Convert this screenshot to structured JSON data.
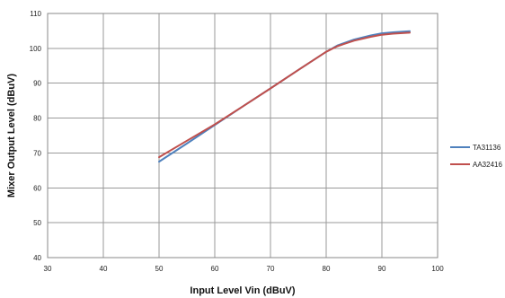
{
  "chart_data": {
    "type": "line",
    "xlabel": "Input Level  Vin (dBuV)",
    "ylabel": "Mixer Output Level (dBuV)",
    "xlim": [
      30,
      100
    ],
    "ylim": [
      40,
      110
    ],
    "xticks": [
      30,
      40,
      50,
      60,
      70,
      80,
      90,
      100
    ],
    "yticks": [
      40,
      50,
      60,
      70,
      80,
      90,
      100,
      110
    ],
    "grid": true,
    "legend_position": "right",
    "series": [
      {
        "name": "TA31136",
        "color": "#4f81bd",
        "x": [
          50,
          55,
          60,
          65,
          70,
          75,
          80,
          82,
          85,
          88,
          90,
          92,
          95
        ],
        "y": [
          67.5,
          72.7,
          78.0,
          83.3,
          88.5,
          93.8,
          99.0,
          100.8,
          102.5,
          103.7,
          104.3,
          104.6,
          104.9
        ]
      },
      {
        "name": "AA32416",
        "color": "#c0504d",
        "x": [
          50,
          55,
          60,
          65,
          70,
          75,
          80,
          82,
          85,
          88,
          90,
          92,
          95
        ],
        "y": [
          68.8,
          73.5,
          78.2,
          83.3,
          88.5,
          93.8,
          99.0,
          100.6,
          102.2,
          103.3,
          103.9,
          104.2,
          104.5
        ]
      }
    ]
  }
}
